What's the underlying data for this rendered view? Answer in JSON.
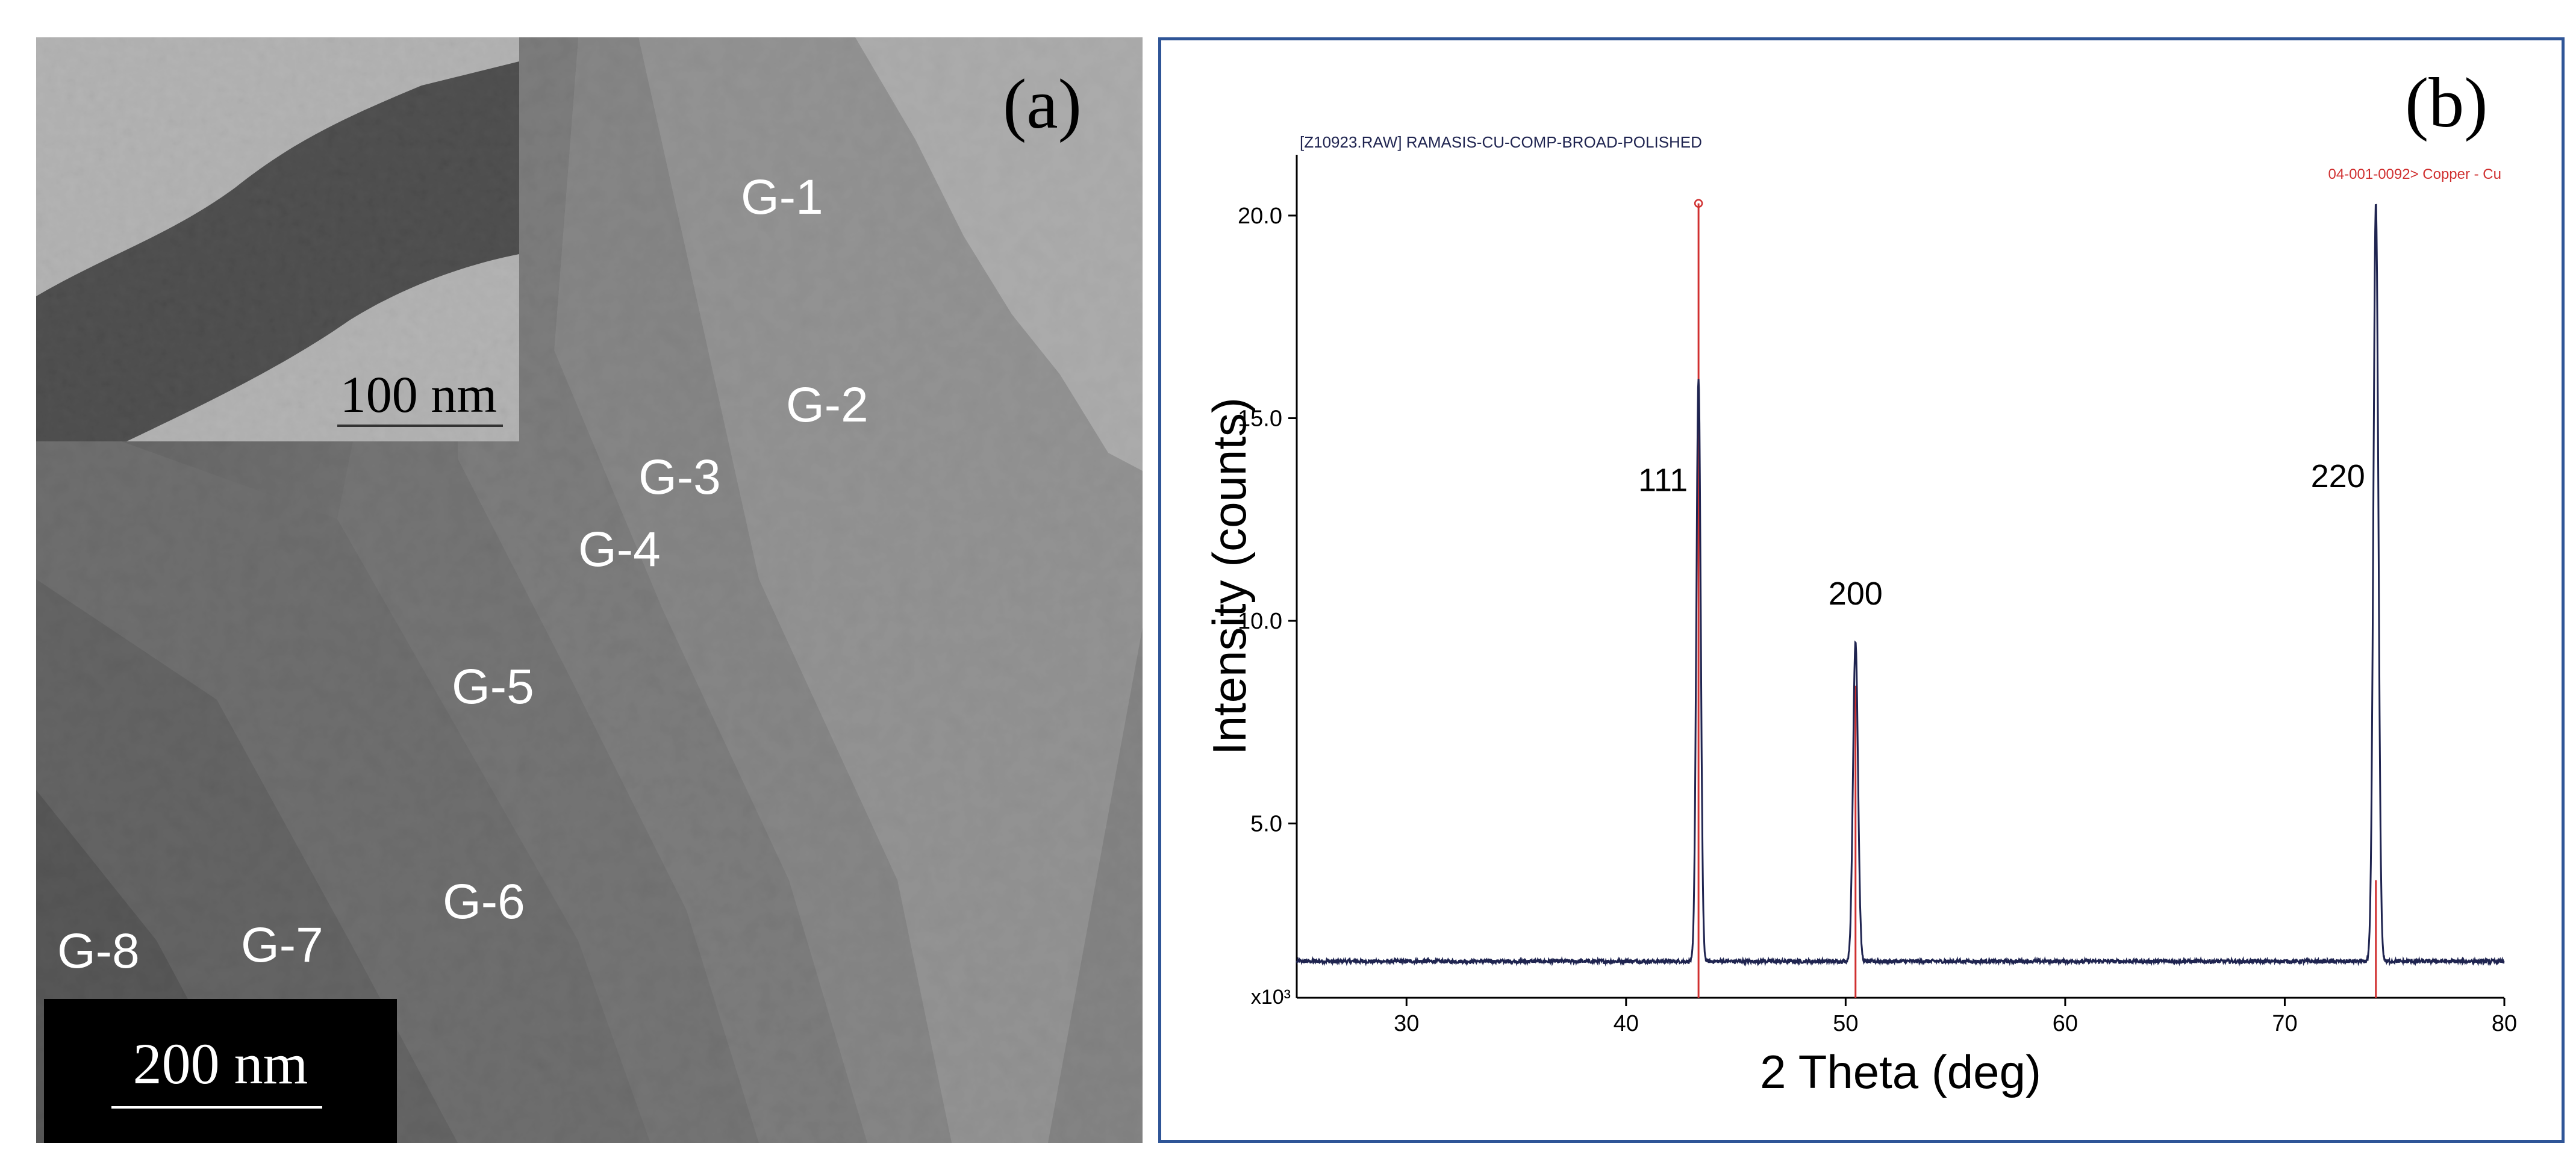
{
  "panel_a": {
    "panel_label": "(a)",
    "grain_labels": [
      "G-1",
      "G-2",
      "G-3",
      "G-4",
      "G-5",
      "G-6",
      "G-7",
      "G-8"
    ],
    "scale_bar": "200 nm",
    "inset_scale_bar": "100 nm"
  },
  "panel_b": {
    "panel_label": "(b)"
  },
  "chart_data": {
    "type": "line",
    "header_left": "[Z10923.RAW] RAMASIS-CU-COMP-BROAD-POLISHED",
    "header_right": "04-001-0092> Copper - Cu",
    "xlabel": "2 Theta (deg)",
    "ylabel": "Intensity (counts)",
    "y_multiplier": "x10³",
    "xlim": [
      25,
      80
    ],
    "ylim": [
      0.7,
      21.5
    ],
    "x_ticks": [
      30,
      40,
      50,
      60,
      70,
      80
    ],
    "y_ticks": [
      5.0,
      10.0,
      15.0,
      20.0
    ],
    "x_tick_labels": [
      "30",
      "40",
      "50",
      "60",
      "70",
      "80"
    ],
    "y_tick_labels": [
      "5.0",
      "10.0",
      "15.0",
      "20.0"
    ],
    "grid": false,
    "colors": {
      "pattern": "#1f2450",
      "reference": "#d03030",
      "frame": "#2f5597"
    },
    "series": [
      {
        "name": "",
        "baseline": 1.6,
        "peaks": [
          {
            "center": 43.3,
            "height": 16.0,
            "width": 0.28
          },
          {
            "center": 50.45,
            "height": 9.5,
            "width": 0.32
          },
          {
            "center": 74.15,
            "height": 20.3,
            "width": 0.32
          }
        ]
      }
    ],
    "reference_lines": [
      {
        "x": 43.3,
        "y": 20.3
      },
      {
        "x": 50.45,
        "y": 8.4
      },
      {
        "x": 74.15,
        "y": 3.6
      }
    ],
    "peak_annotations": [
      {
        "text": "111",
        "x": 43.3,
        "y": 13.2
      },
      {
        "text": "200",
        "x": 50.45,
        "y": 10.4
      },
      {
        "text": "220",
        "x": 74.15,
        "y": 13.3
      }
    ]
  }
}
